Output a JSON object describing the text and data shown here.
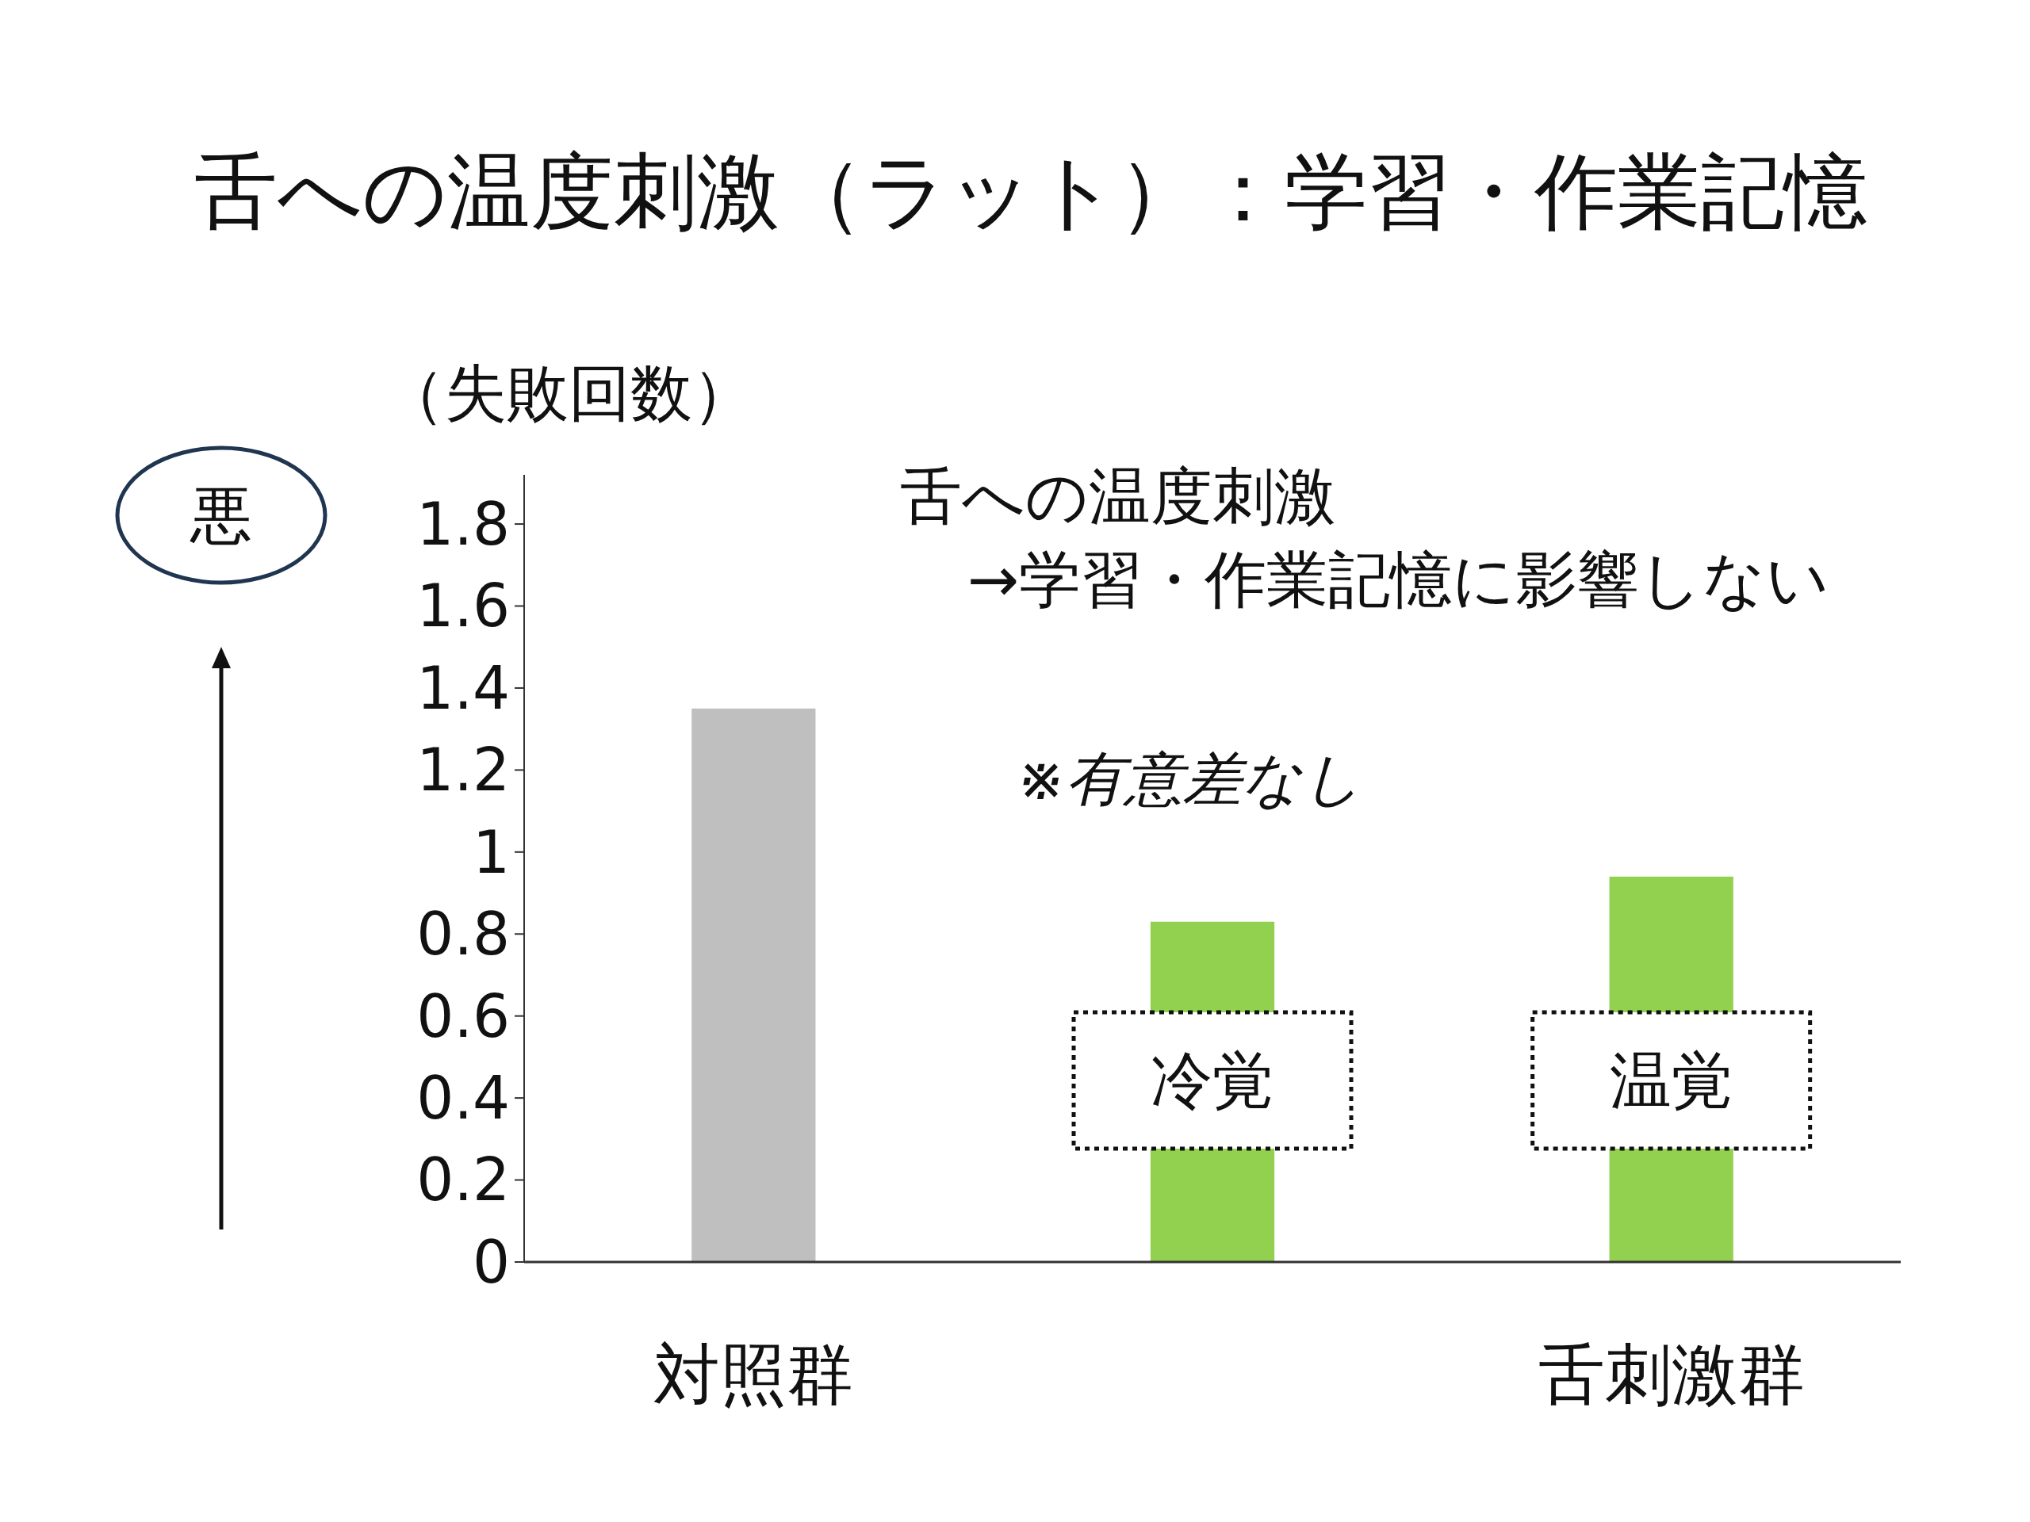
{
  "chart_data": {
    "type": "bar",
    "title": "舌への温度刺激（ラット）：学習・作業記憶",
    "ylabel": "（失敗回数）",
    "categories": [
      "対照群",
      null,
      "舌刺激群"
    ],
    "values": [
      1.35,
      0.83,
      0.94
    ],
    "colors": [
      "#bfbfbf",
      "#92d050",
      "#92d050"
    ],
    "ylim": [
      0,
      1.92
    ],
    "yticks": [
      0,
      0.2,
      0.4,
      0.6,
      0.8,
      1,
      1.2,
      1.4,
      1.6,
      1.8
    ],
    "grid": false,
    "annotations": [
      "舌への温度刺激",
      "→学習・作業記憶に影響しない",
      "※有意差なし",
      "悪",
      "冷覚",
      "温覚"
    ]
  }
}
